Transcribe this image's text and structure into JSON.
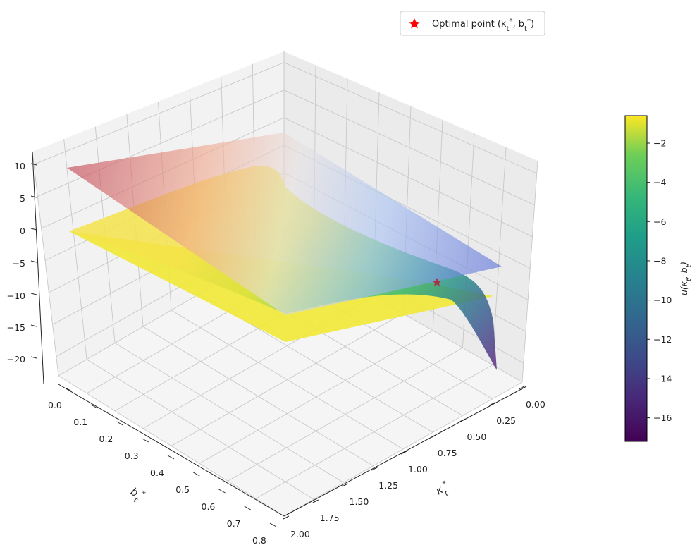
{
  "chart_data": {
    "type": "surface3d",
    "title": "",
    "legend": {
      "placement": "top-right",
      "entries": [
        {
          "label": "Optimal point (κ<sub>t</sub><sup>*</sup>, b<sub>t</sub><sup>*</sup>)",
          "label_text": "Optimal point (κt*, bt*)",
          "marker": "star",
          "color": "#ff0000"
        }
      ]
    },
    "axes": {
      "x": {
        "label": "κt*",
        "range": [
          0.0,
          2.0
        ],
        "ticks": [
          "0.00",
          "0.25",
          "0.50",
          "0.75",
          "1.00",
          "1.25",
          "1.50",
          "1.75",
          "2.00"
        ]
      },
      "y": {
        "label": "bt*",
        "range": [
          0.0,
          0.8
        ],
        "ticks": [
          "0.0",
          "0.1",
          "0.2",
          "0.3",
          "0.4",
          "0.5",
          "0.6",
          "0.7",
          "0.8"
        ]
      },
      "z": {
        "range": [
          -23,
          12
        ],
        "ticks": [
          "10",
          "5",
          "0",
          "−5",
          "−10",
          "−15",
          "−20"
        ]
      }
    },
    "grid": true,
    "colorbar": {
      "label": "u(κt, bt)",
      "range": [
        -17.2,
        -0.6
      ],
      "ticks": [
        "−2",
        "−4",
        "−6",
        "−8",
        "−10",
        "−12",
        "−14",
        "−16"
      ],
      "colormap": "viridis"
    },
    "surfaces": [
      {
        "name": "u(κt, bt)",
        "colormap": "viridis",
        "corners": {
          "k0_b0": -3.0,
          "k0_b08": -17.2,
          "k2_b0": -1.0,
          "k2_b08": -0.6
        }
      },
      {
        "name": "upper plane",
        "colormap": "coolwarm",
        "corners": {
          "k0_b0": -4.5,
          "k0_b08": 1.0,
          "k2_b0": 4.0,
          "k2_b08": 10.0
        }
      },
      {
        "name": "flat plane",
        "color": "#f0e838",
        "z": -1.0
      }
    ],
    "optimal_point": {
      "kappa": 0.2,
      "b": 0.8,
      "u": -7.3
    }
  }
}
